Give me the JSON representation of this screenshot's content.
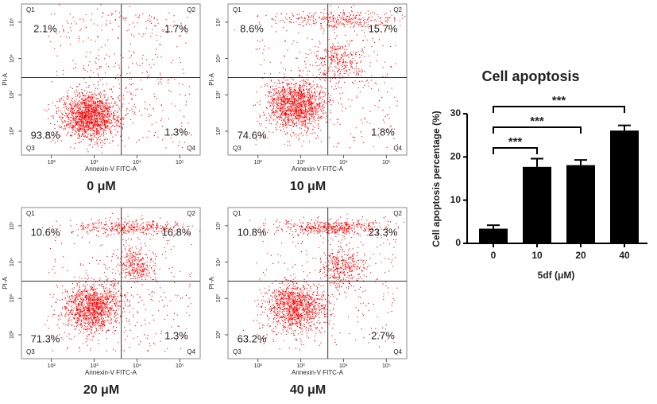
{
  "chart_data": [
    {
      "type": "flow",
      "title": "0 μM",
      "x_label": "Annexin-V FITC-A",
      "y_label": "PI-A",
      "log_scale": true,
      "color": "#ff0000",
      "xlim": [
        20,
        300000
      ],
      "ylim": [
        22,
        316000
      ],
      "xticks": [
        {
          "value": 100,
          "label": "10²"
        },
        {
          "value": 1000,
          "label": "10³"
        },
        {
          "value": 10000,
          "label": "10⁴"
        },
        {
          "value": 100000,
          "label": "10⁵"
        }
      ],
      "yticks": [
        {
          "value": 100,
          "label": "10²"
        },
        {
          "value": 1000,
          "label": "10³"
        },
        {
          "value": 10000,
          "label": "10⁴"
        },
        {
          "value": 100000,
          "label": "10⁵"
        }
      ],
      "gates": {
        "x": 4300,
        "y": 3000
      },
      "quadrants": [
        "Q1",
        "Q2",
        "Q3",
        "Q4"
      ],
      "values": [
        2.1,
        1.7,
        93.8,
        1.3
      ],
      "value_labels": [
        "2.1%",
        "1.7%",
        "93.8%",
        "1.3%"
      ]
    },
    {
      "type": "flow",
      "title": "10 μM",
      "x_label": "Annexin-V FITC-A",
      "y_label": "PI-A",
      "log_scale": true,
      "color": "#ff0000",
      "xlim": [
        20,
        300000
      ],
      "ylim": [
        22,
        316000
      ],
      "xticks": [
        {
          "value": 100,
          "label": "10²"
        },
        {
          "value": 1000,
          "label": "10³"
        },
        {
          "value": 10000,
          "label": "10⁴"
        },
        {
          "value": 100000,
          "label": "10⁵"
        }
      ],
      "yticks": [
        {
          "value": 100,
          "label": "10²"
        },
        {
          "value": 1000,
          "label": "10³"
        },
        {
          "value": 10000,
          "label": "10⁴"
        },
        {
          "value": 100000,
          "label": "10⁵"
        }
      ],
      "gates": {
        "x": 4300,
        "y": 3000
      },
      "quadrants": [
        "Q1",
        "Q2",
        "Q3",
        "Q4"
      ],
      "values": [
        8.6,
        15.7,
        74.6,
        1.8
      ],
      "value_labels": [
        "8.6%",
        "15.7%",
        "74.6%",
        "1.8%"
      ]
    },
    {
      "type": "flow",
      "title": "20 μM",
      "x_label": "Annexin-V FITC-A",
      "y_label": "PI-A",
      "log_scale": true,
      "color": "#ff0000",
      "xlim": [
        20,
        300000
      ],
      "ylim": [
        22,
        316000
      ],
      "xticks": [
        {
          "value": 100,
          "label": "10²"
        },
        {
          "value": 1000,
          "label": "10³"
        },
        {
          "value": 10000,
          "label": "10⁴"
        },
        {
          "value": 100000,
          "label": "10⁵"
        }
      ],
      "yticks": [
        {
          "value": 100,
          "label": "10²"
        },
        {
          "value": 1000,
          "label": "10³"
        },
        {
          "value": 10000,
          "label": "10⁴"
        },
        {
          "value": 100000,
          "label": "10⁵"
        }
      ],
      "gates": {
        "x": 4300,
        "y": 3000
      },
      "quadrants": [
        "Q1",
        "Q2",
        "Q3",
        "Q4"
      ],
      "values": [
        10.6,
        16.8,
        71.3,
        1.3
      ],
      "value_labels": [
        "10.6%",
        "16.8%",
        "71.3%",
        "1.3%"
      ]
    },
    {
      "type": "flow",
      "title": "40 μM",
      "x_label": "Annexin-V FITC-A",
      "y_label": "PI-A",
      "log_scale": true,
      "color": "#ff0000",
      "xlim": [
        20,
        300000
      ],
      "ylim": [
        22,
        316000
      ],
      "xticks": [
        {
          "value": 100,
          "label": "10²"
        },
        {
          "value": 1000,
          "label": "10³"
        },
        {
          "value": 10000,
          "label": "10⁴"
        },
        {
          "value": 100000,
          "label": "10⁵"
        }
      ],
      "yticks": [
        {
          "value": 100,
          "label": "10²"
        },
        {
          "value": 1000,
          "label": "10³"
        },
        {
          "value": 10000,
          "label": "10⁴"
        },
        {
          "value": 100000,
          "label": "10⁵"
        }
      ],
      "gates": {
        "x": 4300,
        "y": 3000
      },
      "quadrants": [
        "Q1",
        "Q2",
        "Q3",
        "Q4"
      ],
      "values": [
        10.8,
        23.3,
        63.2,
        2.7
      ],
      "value_labels": [
        "10.8%",
        "23.3%",
        "63.2%",
        "2.7%"
      ]
    },
    {
      "type": "bar",
      "title": "Cell apoptosis",
      "x_label": "5df (μM)",
      "y_label": "Cell apoptosis percentage (%)",
      "color": "#000000",
      "categories": [
        "0",
        "10",
        "20",
        "40"
      ],
      "values": [
        3.4,
        17.7,
        18.1,
        26.1
      ],
      "errors": [
        0.8,
        1.9,
        1.2,
        1.2
      ],
      "ylim": [
        0,
        30
      ],
      "yticks": [
        0,
        10,
        20,
        30
      ],
      "significance": [
        {
          "between": [
            "0",
            "10"
          ],
          "label": "***"
        },
        {
          "between": [
            "0",
            "20"
          ],
          "label": "***"
        },
        {
          "between": [
            "0",
            "40"
          ],
          "label": "***"
        }
      ]
    }
  ]
}
